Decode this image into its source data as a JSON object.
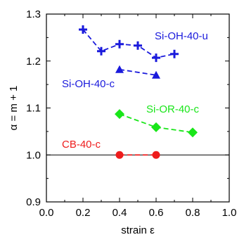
{
  "chart_data": {
    "type": "line",
    "title": "",
    "xlabel": "strain ε",
    "ylabel": "α = m + 1",
    "xlim": [
      0.0,
      1.0
    ],
    "ylim": [
      0.9,
      1.3
    ],
    "xticks": [
      "0.0",
      "0.2",
      "0.4",
      "0.6",
      "0.8",
      "1.0"
    ],
    "yticks": [
      "0.9",
      "1.0",
      "1.1",
      "1.2",
      "1.3"
    ],
    "reference_line": 1.0,
    "grid": false,
    "legend": "none",
    "series": [
      {
        "name": "Si-OH-40-u",
        "color": "#1a1adc",
        "marker": "plus",
        "x": [
          0.2,
          0.3,
          0.4,
          0.5,
          0.6,
          0.7
        ],
        "y": [
          1.267,
          1.221,
          1.236,
          1.233,
          1.207,
          1.215
        ]
      },
      {
        "name": "Si-OH-40-c",
        "color": "#1a1adc",
        "marker": "triangle",
        "x": [
          0.4,
          0.6
        ],
        "y": [
          1.182,
          1.17
        ]
      },
      {
        "name": "Si-OR-40-c",
        "color": "#19e619",
        "marker": "diamond",
        "x": [
          0.4,
          0.6,
          0.8
        ],
        "y": [
          1.087,
          1.059,
          1.048
        ]
      },
      {
        "name": "CB-40-c",
        "color": "#ee1c1c",
        "marker": "circle",
        "x": [
          0.4,
          0.6
        ],
        "y": [
          1.0,
          1.0
        ]
      }
    ]
  }
}
